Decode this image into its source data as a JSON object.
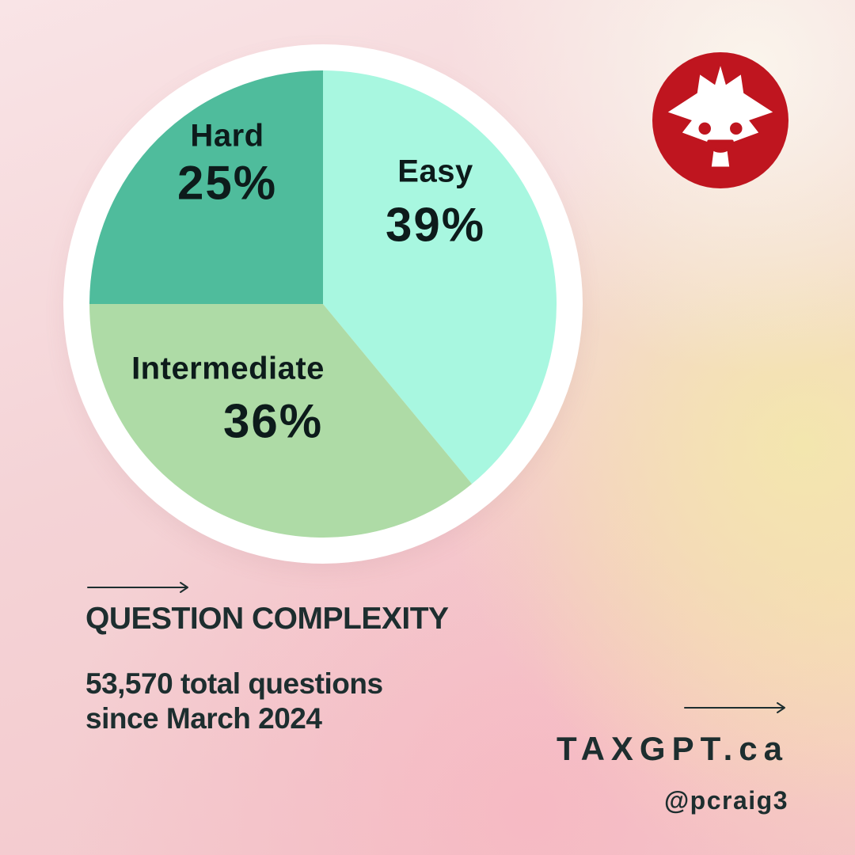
{
  "chart_data": {
    "type": "pie",
    "title": "QUESTION COMPLEXITY",
    "start_angle_deg": -90,
    "direction": "clockwise",
    "legend": "labels-on-slices",
    "slices": [
      {
        "label": "Easy",
        "value": 39,
        "pct_label": "39%",
        "color": "#a8f7e0"
      },
      {
        "label": "Intermediate",
        "value": 36,
        "pct_label": "36%",
        "color": "#aedba6"
      },
      {
        "label": "Hard",
        "value": 25,
        "pct_label": "25%",
        "color": "#4fbc9c"
      }
    ]
  },
  "footer": {
    "subheading_line1": "53,570 total questions",
    "subheading_line2": "since March 2024",
    "site": "TAXGPT.ca",
    "handle": "@pcraig3"
  },
  "logo": {
    "description": "smiling maple leaf mascot",
    "color": "#bf151f"
  },
  "colors": {
    "ink": "#1d2e2f",
    "plate": "#ffffff",
    "background_pink": "#f4d3d6",
    "background_yellow": "#f3e7ad",
    "background_cream": "#faf5ec"
  }
}
